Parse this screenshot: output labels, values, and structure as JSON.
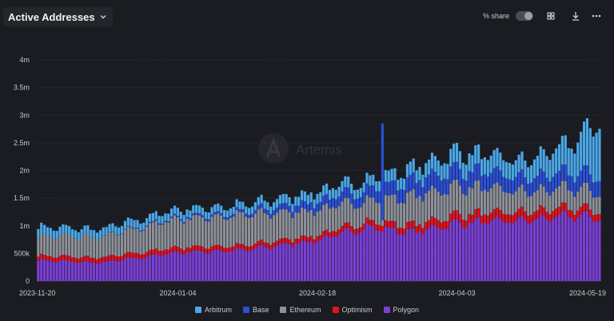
{
  "header": {
    "title": "Active Addresses",
    "share_label": "% share",
    "icons": [
      "chevron-down-icon",
      "grid-icon",
      "download-icon",
      "more-icon"
    ]
  },
  "watermark": "Artemis",
  "colors": {
    "background": "#1b1c21",
    "grid": "#34363d",
    "axis_text": "#c9ccd3",
    "Arbitrum": "#4aa7e8",
    "Base": "#2b4fd9",
    "Ethereum": "#8d9098",
    "Optimism": "#e3121f",
    "Polygon": "#7b3fd6"
  },
  "chart_data": {
    "type": "bar",
    "stacked": true,
    "xlabel": "",
    "ylabel": "",
    "ylim": [
      0,
      4000000
    ],
    "y_ticks": [
      0,
      500000,
      1000000,
      1500000,
      2000000,
      2500000,
      3000000,
      3500000,
      4000000
    ],
    "y_tick_labels": [
      "0",
      "500k",
      "1m",
      "1.5m",
      "2m",
      "2.5m",
      "3m",
      "3.5m",
      "4m"
    ],
    "x_tick_labels": [
      "2023-11-20",
      "2024-01-04",
      "2024-02-18",
      "2024-04-03",
      "2024-05-19"
    ],
    "grid": true,
    "legend_position": "bottom",
    "series_order": [
      "Polygon",
      "Optimism",
      "Ethereum",
      "Base",
      "Arbitrum"
    ],
    "anchors": [
      {
        "x": "2023-11-20",
        "Polygon": 380000,
        "Optimism": 80000,
        "Ethereum": 350000,
        "Base": 0,
        "Arbitrum": 170000
      },
      {
        "x": "2023-12-10",
        "Polygon": 330000,
        "Optimism": 90000,
        "Ethereum": 370000,
        "Base": 0,
        "Arbitrum": 140000
      },
      {
        "x": "2024-01-04",
        "Polygon": 520000,
        "Optimism": 90000,
        "Ethereum": 520000,
        "Base": 30000,
        "Arbitrum": 140000
      },
      {
        "x": "2024-01-25",
        "Polygon": 560000,
        "Optimism": 80000,
        "Ethereum": 550000,
        "Base": 50000,
        "Arbitrum": 130000
      },
      {
        "x": "2024-02-18",
        "Polygon": 740000,
        "Optimism": 90000,
        "Ethereum": 460000,
        "Base": 150000,
        "Arbitrum": 180000
      },
      {
        "x": "2024-03-05",
        "Polygon": 980000,
        "Optimism": 100000,
        "Ethereum": 380000,
        "Base": 200000,
        "Arbitrum": 180000
      },
      {
        "x": "2024-03-20",
        "Polygon": 880000,
        "Optimism": 130000,
        "Ethereum": 520000,
        "Base": 280000,
        "Arbitrum": 230000
      },
      {
        "x": "2024-04-03",
        "Polygon": 1050000,
        "Optimism": 150000,
        "Ethereum": 520000,
        "Base": 300000,
        "Arbitrum": 320000
      },
      {
        "x": "2024-04-25",
        "Polygon": 1100000,
        "Optimism": 150000,
        "Ethereum": 360000,
        "Base": 250000,
        "Arbitrum": 300000
      },
      {
        "x": "2024-05-10",
        "Polygon": 1180000,
        "Optimism": 140000,
        "Ethereum": 360000,
        "Base": 280000,
        "Arbitrum": 520000
      },
      {
        "x": "2024-05-19",
        "Polygon": 1150000,
        "Optimism": 130000,
        "Ethereum": 330000,
        "Base": 300000,
        "Arbitrum": 1000000
      }
    ],
    "series": [
      {
        "name": "Arbitrum"
      },
      {
        "name": "Base"
      },
      {
        "name": "Ethereum"
      },
      {
        "name": "Optimism"
      },
      {
        "name": "Polygon"
      }
    ]
  }
}
